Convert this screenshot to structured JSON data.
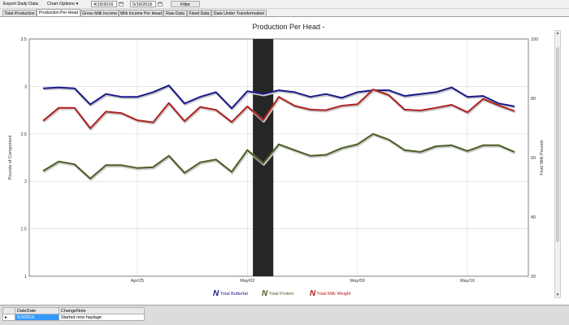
{
  "toolbar": {
    "export_label": "Export Daily Data",
    "chart_options_label": "Chart Options",
    "start_date": "4/19/2016",
    "end_date": "5/19/2016",
    "filter_label": "Filter"
  },
  "tabs": [
    {
      "label": "Total Production",
      "active": false
    },
    {
      "label": "Production Per Head",
      "active": true
    },
    {
      "label": "Gross Milk Income",
      "active": false
    },
    {
      "label": "Milk Income Per Head",
      "active": false
    },
    {
      "label": "Raw Data",
      "active": false
    },
    {
      "label": "Fixed Data",
      "active": false
    },
    {
      "label": "Data Under Transformation",
      "active": false
    }
  ],
  "chart_data": {
    "type": "line",
    "title": "Production Per Head -",
    "ylabel": "Pounds of Component",
    "y2label": "Fluid Milk Pounds",
    "ylim": [
      1,
      3.5
    ],
    "y2lim": [
      20,
      100
    ],
    "yticks": [
      "1",
      "1.5",
      "2",
      "2.5",
      "3",
      "3.5"
    ],
    "y2ticks": [
      "20",
      "40",
      "60",
      "80",
      "100"
    ],
    "xlabels": [
      "Apr/25",
      "May/02",
      "May/09",
      "May/16"
    ],
    "xlabel_days": [
      6,
      13,
      20,
      27
    ],
    "highlight_day": 14,
    "grid": true,
    "legend_position": "bottom",
    "series": [
      {
        "name": "Total Butterfat",
        "axis": "left",
        "color": "#1a1a8c",
        "values": [
          2.98,
          2.99,
          2.98,
          2.81,
          2.92,
          2.89,
          2.89,
          2.94,
          3.01,
          2.82,
          2.89,
          2.94,
          2.77,
          2.95,
          2.92,
          2.96,
          2.94,
          2.89,
          2.92,
          2.88,
          2.94,
          2.96,
          2.96,
          2.9,
          2.92,
          2.94,
          2.99,
          2.89,
          2.9,
          2.82,
          2.79
        ]
      },
      {
        "name": "Total Protein",
        "axis": "left",
        "color": "#4a5e23",
        "values": [
          2.11,
          2.21,
          2.18,
          2.03,
          2.17,
          2.17,
          2.14,
          2.15,
          2.27,
          2.09,
          2.2,
          2.23,
          2.1,
          2.33,
          2.19,
          2.39,
          2.33,
          2.27,
          2.28,
          2.35,
          2.39,
          2.5,
          2.44,
          2.33,
          2.31,
          2.37,
          2.38,
          2.32,
          2.38,
          2.38,
          2.31
        ]
      },
      {
        "name": "Total Milk Weight",
        "axis": "right",
        "color": "#b02020",
        "values": [
          72.4,
          76.8,
          76.8,
          69.9,
          75.5,
          75.0,
          72.6,
          71.9,
          78.4,
          72.3,
          77.1,
          76.1,
          72.0,
          77.3,
          72.6,
          80.5,
          77.5,
          76.2,
          76.0,
          77.5,
          78.0,
          83.0,
          81.1,
          76.2,
          75.9,
          76.8,
          77.8,
          75.3,
          79.8,
          77.6,
          75.7
        ]
      }
    ]
  },
  "notes_table": {
    "headers": [
      "DateDate",
      "ChangeNote"
    ],
    "rows": [
      {
        "marker": "▸",
        "date": "5/3/2016",
        "note": "Started new haylage"
      }
    ]
  }
}
